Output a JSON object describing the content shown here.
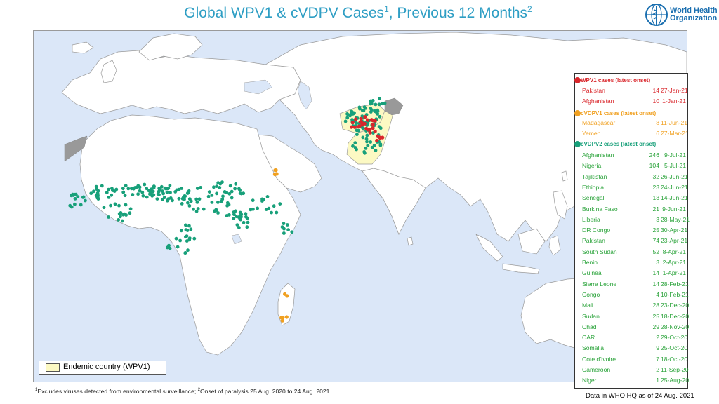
{
  "title": {
    "main": "Global WPV1 & cVDPV Cases",
    "sup1": "1",
    "middle": ", Previous 12 Months",
    "sup2": "2"
  },
  "logo": {
    "line1": "World Health",
    "line2": "Organization",
    "icon": "who-emblem-icon"
  },
  "colors": {
    "ocean": "#dbe7f8",
    "land": "#ffffff",
    "borders": "#9a9a9a",
    "endemic": "#fcf9c3",
    "wpv1": "#d9262b",
    "cvdpv1": "#f0a020",
    "cvdpv2": "#18a07a",
    "title": "#2e9ec4",
    "no_data": "#999999"
  },
  "legend": {
    "wpv1": {
      "header": "WPV1 cases (latest onset)",
      "rows": [
        {
          "country": "Pakistan",
          "count": "14",
          "date": "27-Jan-21"
        },
        {
          "country": "Afghanistan",
          "count": "10",
          "date": "1-Jan-21"
        }
      ]
    },
    "cvdpv1": {
      "header": "cVDPV1 cases (latest onset)",
      "rows": [
        {
          "country": "Madagascar",
          "count": "8",
          "date": "11-Jun-21"
        },
        {
          "country": "Yemen",
          "count": "6",
          "date": "27-Mar-21"
        }
      ]
    },
    "cvdpv2": {
      "header": "cVDPV2 cases (latest onset)",
      "rows": [
        {
          "country": "Afghanistan",
          "count": "246",
          "date": "9-Jul-21"
        },
        {
          "country": "Nigeria",
          "count": "104",
          "date": "5-Jul-21"
        },
        {
          "country": "Tajikistan",
          "count": "32",
          "date": "26-Jun-21"
        },
        {
          "country": "Ethiopia",
          "count": "23",
          "date": "24-Jun-21"
        },
        {
          "country": "Senegal",
          "count": "13",
          "date": "14-Jun-21"
        },
        {
          "country": "Burkina Faso",
          "count": "21",
          "date": "9-Jun-21"
        },
        {
          "country": "Liberia",
          "count": "3",
          "date": "28-May-21"
        },
        {
          "country": "DR Congo",
          "count": "25",
          "date": "30-Apr-21"
        },
        {
          "country": "Pakistan",
          "count": "74",
          "date": "23-Apr-21"
        },
        {
          "country": "South Sudan",
          "count": "52",
          "date": "8-Apr-21"
        },
        {
          "country": "Benin",
          "count": "3",
          "date": "2-Apr-21"
        },
        {
          "country": "Guinea",
          "count": "14",
          "date": "1-Apr-21"
        },
        {
          "country": "Sierra Leone",
          "count": "14",
          "date": "28-Feb-21"
        },
        {
          "country": "Congo",
          "count": "4",
          "date": "10-Feb-21"
        },
        {
          "country": "Mali",
          "count": "28",
          "date": "23-Dec-20"
        },
        {
          "country": "Sudan",
          "count": "25",
          "date": "18-Dec-20"
        },
        {
          "country": "Chad",
          "count": "29",
          "date": "28-Nov-20"
        },
        {
          "country": "CAR",
          "count": "2",
          "date": "29-Oct-20"
        },
        {
          "country": "Somalia",
          "count": "9",
          "date": "25-Oct-20"
        },
        {
          "country": "Cote d'Ivoire",
          "count": "7",
          "date": "18-Oct-20"
        },
        {
          "country": "Cameroon",
          "count": "2",
          "date": "11-Sep-20"
        },
        {
          "country": "Niger",
          "count": "1",
          "date": "25-Aug-20"
        }
      ]
    }
  },
  "endemic_legend": "Endemic country (WPV1)",
  "footnote": {
    "sup1": "1",
    "text1": "Excludes viruses detected from environmental surveillance;  ",
    "sup2": "2",
    "text2": "Onset of paralysis 25 Aug. 2020 to 24 Aug. 2021"
  },
  "as_of": "Data in WHO HQ as of 24 Aug. 2021"
}
